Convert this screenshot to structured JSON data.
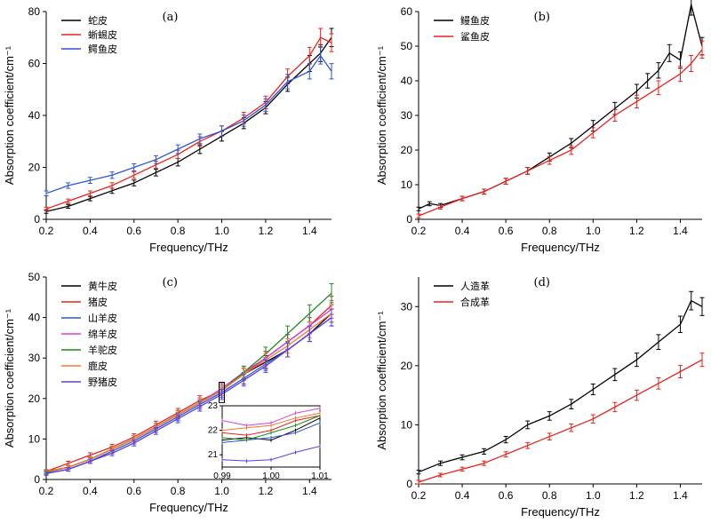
{
  "chart_data": [
    {
      "type": "line",
      "panel_label": "(a)",
      "xlabel": "Frequency/THz",
      "ylabel": "Absorption coefficient/cm⁻¹",
      "xlim": [
        0.2,
        1.5
      ],
      "ylim": [
        0,
        80
      ],
      "xticks": [
        0.2,
        0.4,
        0.6,
        0.8,
        1.0,
        1.2,
        1.4
      ],
      "yticks": [
        0,
        20,
        40,
        60,
        80
      ],
      "legend_position": "top-left",
      "error_bars": true,
      "series": [
        {
          "name": "蛇皮",
          "color": "#000000",
          "x": [
            0.2,
            0.3,
            0.4,
            0.5,
            0.6,
            0.7,
            0.8,
            0.9,
            1.0,
            1.1,
            1.2,
            1.3,
            1.4,
            1.45,
            1.5
          ],
          "y": [
            3,
            5,
            8,
            11,
            14,
            18,
            22,
            27,
            32,
            37,
            43,
            52,
            60,
            64,
            70
          ]
        },
        {
          "name": "蜥蜴皮",
          "color": "#e8231c",
          "x": [
            0.2,
            0.3,
            0.4,
            0.5,
            0.6,
            0.7,
            0.8,
            0.9,
            1.0,
            1.1,
            1.2,
            1.3,
            1.4,
            1.45,
            1.5
          ],
          "y": [
            4,
            7,
            10,
            13,
            17,
            21,
            25,
            30,
            34,
            39,
            45,
            55,
            63,
            70,
            68
          ]
        },
        {
          "name": "鳄鱼皮",
          "color": "#2d55d6",
          "x": [
            0.2,
            0.3,
            0.4,
            0.5,
            0.6,
            0.7,
            0.8,
            0.9,
            1.0,
            1.1,
            1.2,
            1.3,
            1.4,
            1.45,
            1.5
          ],
          "y": [
            10,
            13,
            15,
            17,
            20,
            23,
            27,
            31,
            34,
            38,
            44,
            53,
            57,
            63,
            57
          ]
        }
      ]
    },
    {
      "type": "line",
      "panel_label": "(b)",
      "xlabel": "Frequency/THz",
      "ylabel": "Absorption coefficient/cm⁻¹",
      "xlim": [
        0.2,
        1.5
      ],
      "ylim": [
        0,
        60
      ],
      "xticks": [
        0.2,
        0.4,
        0.6,
        0.8,
        1.0,
        1.2,
        1.4
      ],
      "yticks": [
        0,
        10,
        20,
        30,
        40,
        50,
        60
      ],
      "legend_position": "top-left",
      "error_bars": true,
      "series": [
        {
          "name": "鳗鱼皮",
          "color": "#000000",
          "x": [
            0.2,
            0.25,
            0.3,
            0.4,
            0.5,
            0.6,
            0.7,
            0.8,
            0.9,
            1.0,
            1.1,
            1.2,
            1.25,
            1.3,
            1.35,
            1.4,
            1.45,
            1.5
          ],
          "y": [
            3,
            4.5,
            4,
            6,
            8,
            11,
            14,
            18,
            22,
            27,
            32,
            37,
            40,
            43,
            48,
            46,
            62,
            50
          ]
        },
        {
          "name": "鲨鱼皮",
          "color": "#e8231c",
          "x": [
            0.2,
            0.3,
            0.4,
            0.5,
            0.6,
            0.7,
            0.8,
            0.9,
            1.0,
            1.1,
            1.2,
            1.3,
            1.4,
            1.45,
            1.5
          ],
          "y": [
            1,
            3.5,
            6,
            8,
            11,
            14,
            17,
            20,
            25,
            30,
            34,
            38,
            42,
            45,
            49
          ]
        }
      ]
    },
    {
      "type": "line",
      "panel_label": "(c)",
      "xlabel": "Frequency/THz",
      "ylabel": "Absorption coefficient/cm⁻¹",
      "xlim": [
        0.2,
        1.5
      ],
      "ylim": [
        0,
        50
      ],
      "xticks": [
        0.2,
        0.4,
        0.6,
        0.8,
        1.0,
        1.2,
        1.4
      ],
      "yticks": [
        0,
        10,
        20,
        30,
        40,
        50
      ],
      "legend_position": "top-left",
      "error_bars": true,
      "series": [
        {
          "name": "黄牛皮",
          "color": "#000000",
          "x": [
            0.2,
            0.3,
            0.4,
            0.5,
            0.6,
            0.7,
            0.8,
            0.9,
            1.0,
            1.1,
            1.2,
            1.3,
            1.4,
            1.5
          ],
          "y": [
            2,
            3,
            5,
            7.5,
            10,
            13,
            16,
            19,
            22,
            26,
            29,
            32,
            36,
            41
          ]
        },
        {
          "name": "猪皮",
          "color": "#e8231c",
          "x": [
            0.2,
            0.3,
            0.4,
            0.5,
            0.6,
            0.7,
            0.8,
            0.9,
            1.0,
            1.1,
            1.2,
            1.3,
            1.4,
            1.5
          ],
          "y": [
            2,
            4,
            6,
            8,
            10.5,
            13.5,
            16.5,
            19.5,
            22,
            26,
            30,
            34,
            38,
            43
          ]
        },
        {
          "name": "山羊皮",
          "color": "#2d55d6",
          "x": [
            0.2,
            0.3,
            0.4,
            0.5,
            0.6,
            0.7,
            0.8,
            0.9,
            1.0,
            1.1,
            1.2,
            1.3,
            1.4,
            1.5
          ],
          "y": [
            1.5,
            2.5,
            4.5,
            7,
            9.5,
            12.5,
            15.5,
            18.5,
            21.5,
            25,
            28.5,
            32,
            36,
            40
          ]
        },
        {
          "name": "绵羊皮",
          "color": "#d83cd8",
          "x": [
            0.2,
            0.3,
            0.4,
            0.5,
            0.6,
            0.7,
            0.8,
            0.9,
            1.0,
            1.1,
            1.2,
            1.3,
            1.4,
            1.5
          ],
          "y": [
            1.8,
            3,
            5,
            7.5,
            10,
            13,
            16,
            19,
            22.5,
            26.5,
            30,
            34,
            38,
            42
          ]
        },
        {
          "name": "羊驼皮",
          "color": "#1c8c1c",
          "x": [
            0.2,
            0.3,
            0.4,
            0.5,
            0.6,
            0.7,
            0.8,
            0.9,
            1.0,
            1.1,
            1.2,
            1.3,
            1.4,
            1.5
          ],
          "y": [
            1.8,
            3,
            5,
            7.5,
            10,
            13,
            16,
            19,
            22,
            26.5,
            31,
            36,
            41,
            46
          ]
        },
        {
          "name": "鹿皮",
          "color": "#f07a2a",
          "x": [
            0.2,
            0.3,
            0.4,
            0.5,
            0.6,
            0.7,
            0.8,
            0.9,
            1.0,
            1.1,
            1.2,
            1.3,
            1.4,
            1.5
          ],
          "y": [
            2,
            3,
            5,
            7.5,
            10,
            13,
            16,
            19,
            22,
            26,
            29.5,
            33,
            37,
            41
          ]
        },
        {
          "name": "野猪皮",
          "color": "#5b3fe6",
          "x": [
            0.2,
            0.3,
            0.4,
            0.5,
            0.6,
            0.7,
            0.8,
            0.9,
            1.0,
            1.1,
            1.2,
            1.3,
            1.4,
            1.5
          ],
          "y": [
            1.5,
            2.5,
            4.5,
            6.5,
            9,
            12,
            15,
            18,
            21,
            24.5,
            28,
            32,
            36,
            40
          ]
        }
      ],
      "inset": {
        "xlim": [
          0.99,
          1.01
        ],
        "ylim": [
          20.5,
          23
        ],
        "xticks": [
          "0.99",
          "1.00",
          "1.01"
        ],
        "yticks": [
          21,
          22,
          23
        ],
        "series": [
          {
            "color": "#000000",
            "x": [
              0.99,
              0.995,
              1.0,
              1.005,
              1.01
            ],
            "y": [
              21.6,
              21.7,
              21.6,
              22.0,
              22.5
            ]
          },
          {
            "color": "#e8231c",
            "x": [
              0.99,
              0.995,
              1.0,
              1.005,
              1.01
            ],
            "y": [
              21.9,
              21.8,
              22.0,
              22.4,
              22.6
            ]
          },
          {
            "color": "#2d55d6",
            "x": [
              0.99,
              0.995,
              1.0,
              1.005,
              1.01
            ],
            "y": [
              21.5,
              21.6,
              21.7,
              21.9,
              22.3
            ]
          },
          {
            "color": "#d83cd8",
            "x": [
              0.99,
              0.995,
              1.0,
              1.005,
              1.01
            ],
            "y": [
              22.4,
              22.2,
              22.3,
              22.7,
              22.9
            ]
          },
          {
            "color": "#1c8c1c",
            "x": [
              0.99,
              0.995,
              1.0,
              1.005,
              1.01
            ],
            "y": [
              21.7,
              21.6,
              21.9,
              22.2,
              22.6
            ]
          },
          {
            "color": "#f07a2a",
            "x": [
              0.99,
              0.995,
              1.0,
              1.005,
              1.01
            ],
            "y": [
              22.0,
              22.1,
              22.2,
              22.5,
              22.7
            ]
          },
          {
            "color": "#5b3fe6",
            "x": [
              0.99,
              0.995,
              1.0,
              1.005,
              1.01
            ],
            "y": [
              20.8,
              20.75,
              20.8,
              21.1,
              21.35
            ]
          }
        ]
      }
    },
    {
      "type": "line",
      "panel_label": "(d)",
      "xlabel": "Frequency/THz",
      "ylabel": "Absorption coefficient/cm⁻¹",
      "xlim": [
        0.2,
        1.5
      ],
      "ylim": [
        0,
        35
      ],
      "xticks": [
        0.2,
        0.4,
        0.6,
        0.8,
        1.0,
        1.2,
        1.4
      ],
      "yticks": [
        0,
        10,
        20,
        30
      ],
      "legend_position": "top-left",
      "error_bars": true,
      "series": [
        {
          "name": "人造革",
          "color": "#000000",
          "x": [
            0.2,
            0.3,
            0.4,
            0.5,
            0.6,
            0.7,
            0.8,
            0.9,
            1.0,
            1.1,
            1.2,
            1.3,
            1.4,
            1.45,
            1.5
          ],
          "y": [
            2,
            3.5,
            4.5,
            5.5,
            7.5,
            10,
            11.5,
            13.5,
            16,
            18.5,
            21,
            24,
            27,
            31,
            30
          ]
        },
        {
          "name": "合成革",
          "color": "#e8231c",
          "x": [
            0.2,
            0.3,
            0.4,
            0.5,
            0.6,
            0.7,
            0.8,
            0.9,
            1.0,
            1.1,
            1.2,
            1.3,
            1.4,
            1.5
          ],
          "y": [
            0.3,
            1.5,
            2.5,
            3.5,
            5,
            6.5,
            8,
            9.5,
            11,
            13,
            15,
            17,
            19,
            21
          ]
        }
      ]
    }
  ]
}
